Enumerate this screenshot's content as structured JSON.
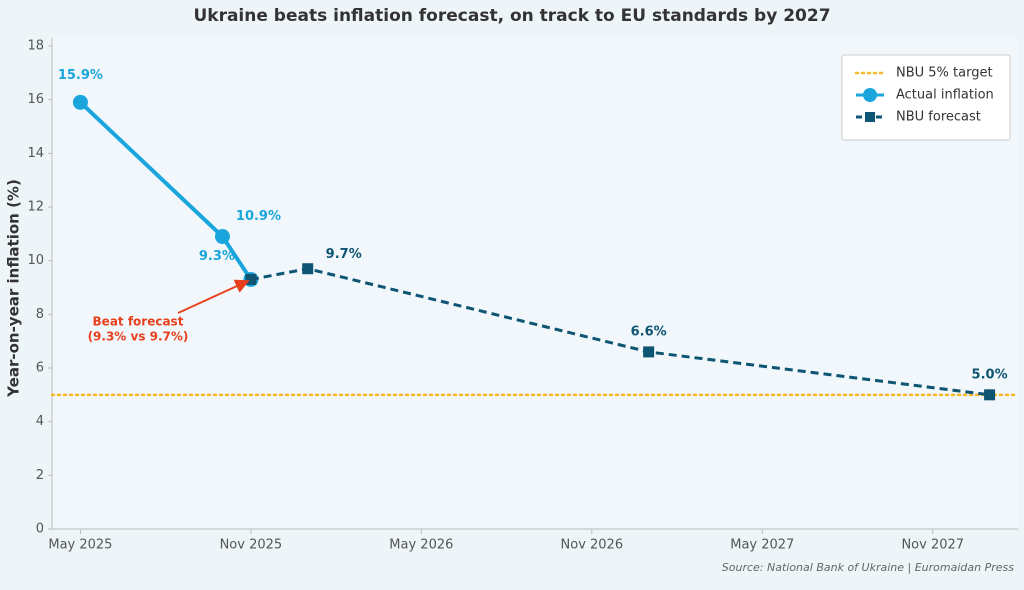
{
  "chart_data": {
    "type": "line",
    "title": "Ukraine beats inflation forecast, on track to EU standards by 2027",
    "y_label": "Year-on-year inflation (%)",
    "source": "Source: National Bank of Ukraine | Euromaidan Press",
    "xlim": [
      "2025-04",
      "2028-02"
    ],
    "xticks": [
      {
        "value": "2025-05",
        "label": "May 2025"
      },
      {
        "value": "2025-11",
        "label": "Nov 2025"
      },
      {
        "value": "2026-05",
        "label": "May 2026"
      },
      {
        "value": "2026-11",
        "label": "Nov 2026"
      },
      {
        "value": "2027-05",
        "label": "May 2027"
      },
      {
        "value": "2027-11",
        "label": "Nov 2027"
      }
    ],
    "ylim": [
      0,
      18
    ],
    "yticks": [
      0,
      2,
      4,
      6,
      8,
      10,
      12,
      14,
      16,
      18
    ],
    "legend": "upper right",
    "reference_line": {
      "name": "NBU 5% target",
      "value": 5,
      "color": "#f5b82a"
    },
    "series": [
      {
        "name": "Actual inflation",
        "color": "#1aa5dd",
        "marker": "circle",
        "dash": false,
        "x": [
          "2025-05",
          "2025-10",
          "2025-11"
        ],
        "values": [
          15.9,
          10.9,
          9.3
        ],
        "value_labels": [
          "15.9%",
          "10.9%",
          "9.3%"
        ]
      },
      {
        "name": "NBU forecast",
        "color": "#0d5572",
        "marker": "square",
        "dash": true,
        "x": [
          "2025-11",
          "2026-01",
          "2027-01",
          "2028-01"
        ],
        "values": [
          9.3,
          9.7,
          6.6,
          5.0
        ],
        "value_labels": [
          null,
          "9.7%",
          "6.6%",
          "5.0%"
        ]
      }
    ],
    "annotation": {
      "lines": [
        "Beat forecast",
        "(9.3% vs 9.7%)"
      ],
      "color": "#e8401c"
    }
  }
}
